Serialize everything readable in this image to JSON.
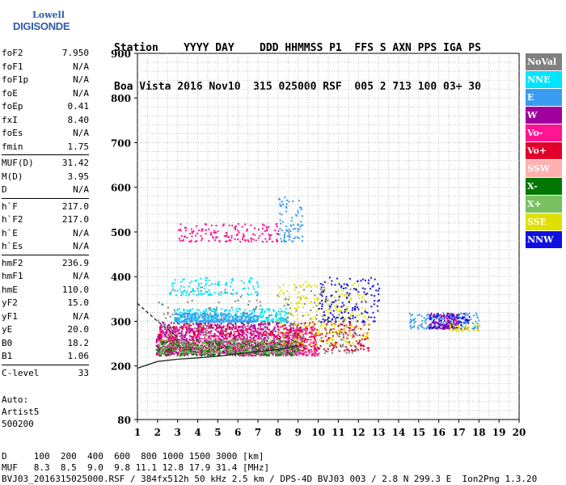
{
  "logo": {
    "top": "Lowell",
    "bottom": "DIGISONDE"
  },
  "header": {
    "line1": "Station    YYYY DAY    DDD HHMMSS P1  FFS S AXN PPS IGA PS",
    "line2": "Boa Vista 2016 Nov10  315 025000 RSF  005 2 713 100 03+ 30"
  },
  "params": [
    [
      {
        "k": "foF2",
        "v": "7.950"
      },
      {
        "k": "foF1",
        "v": "N/A"
      },
      {
        "k": "foF1p",
        "v": "N/A"
      },
      {
        "k": "foE",
        "v": "N/A"
      },
      {
        "k": "foEp",
        "v": "0.41"
      },
      {
        "k": "fxI",
        "v": "8.40"
      },
      {
        "k": "foEs",
        "v": "N/A"
      },
      {
        "k": "fmin",
        "v": "1.75"
      }
    ],
    [
      {
        "k": "MUF(D)",
        "v": "31.42"
      },
      {
        "k": "M(D)",
        "v": "3.95"
      },
      {
        "k": "D",
        "v": "N/A"
      }
    ],
    [
      {
        "k": "h`F",
        "v": "217.0"
      },
      {
        "k": "h`F2",
        "v": "217.0"
      },
      {
        "k": "h`E",
        "v": "N/A"
      },
      {
        "k": "h`Es",
        "v": "N/A"
      }
    ],
    [
      {
        "k": "hmF2",
        "v": "236.9"
      },
      {
        "k": "hmF1",
        "v": "N/A"
      },
      {
        "k": "hmE",
        "v": "110.0"
      },
      {
        "k": "yF2",
        "v": "15.0"
      },
      {
        "k": "yF1",
        "v": "N/A"
      },
      {
        "k": "yE",
        "v": "20.0"
      },
      {
        "k": "B0",
        "v": "18.2"
      },
      {
        "k": "B1",
        "v": "1.06"
      }
    ],
    [
      {
        "k": "C-level",
        "v": "33"
      }
    ]
  ],
  "auto": {
    "line1": "Auto:",
    "line2": "Artist5",
    "line3": "500200"
  },
  "footer": {
    "line1": "D     100  200  400  600  800 1000 1500 3000 [km]",
    "line2": "MUF   8.3  8.5  9.0  9.8 11.1 12.8 17.9 31.4 [MHz]",
    "line3": "BVJ03_2016315025000.RSF / 384fx512h 50 kHz 2.5 km / DPS-4D BVJ03 003 / 2.8 N 299.3 E  Ion2Png 1.3.20"
  },
  "legend": [
    {
      "label": "NoVal",
      "color": "#808080"
    },
    {
      "label": "NNE",
      "color": "#00e5ff"
    },
    {
      "label": "E",
      "color": "#3a9cf0"
    },
    {
      "label": "W",
      "color": "#a000a0"
    },
    {
      "label": "Vo-",
      "color": "#ff1493"
    },
    {
      "label": "Vo+",
      "color": "#e0002a"
    },
    {
      "label": "SSW",
      "color": "#ffb0b0"
    },
    {
      "label": "X-",
      "color": "#007800"
    },
    {
      "label": "X+",
      "color": "#78c060"
    },
    {
      "label": "SSE",
      "color": "#e0e000"
    },
    {
      "label": "NNW",
      "color": "#1010e0"
    }
  ],
  "chart_data": {
    "type": "scatter",
    "xlim": [
      1,
      20
    ],
    "ylim": [
      80,
      900
    ],
    "x_ticks": [
      "1",
      "2",
      "3",
      "4",
      "5",
      "6",
      "7",
      "8",
      "9",
      "10",
      "11",
      "12",
      "13",
      "14",
      "15",
      "16",
      "17",
      "18",
      "19",
      "20"
    ],
    "y_ticks": [
      "80",
      "200",
      "300",
      "400",
      "500",
      "600",
      "700",
      "800",
      "900"
    ],
    "grid": true,
    "legend_position": "right",
    "clusters": [
      {
        "series": "W",
        "x": [
          1.9,
          9.2
        ],
        "y": [
          230,
          300
        ],
        "n": 900
      },
      {
        "series": "Vo-",
        "x": [
          1.9,
          10.0
        ],
        "y": [
          225,
          290
        ],
        "n": 700
      },
      {
        "series": "Vo+",
        "x": [
          2.0,
          12.5
        ],
        "y": [
          235,
          300
        ],
        "n": 500
      },
      {
        "series": "X-",
        "x": [
          1.9,
          9.0
        ],
        "y": [
          225,
          260
        ],
        "n": 300
      },
      {
        "series": "X+",
        "x": [
          2.0,
          9.0
        ],
        "y": [
          230,
          260
        ],
        "n": 250
      },
      {
        "series": "NNE",
        "x": [
          2.8,
          8.5
        ],
        "y": [
          300,
          330
        ],
        "n": 350
      },
      {
        "series": "E",
        "x": [
          2.8,
          7.0
        ],
        "y": [
          300,
          320
        ],
        "n": 250
      },
      {
        "series": "NoVal",
        "x": [
          2.0,
          12.0
        ],
        "y": [
          230,
          380
        ],
        "n": 350
      },
      {
        "series": "SSE",
        "x": [
          8.0,
          12.5
        ],
        "y": [
          250,
          390
        ],
        "n": 250
      },
      {
        "series": "NNW",
        "x": [
          10.0,
          13.0
        ],
        "y": [
          300,
          400
        ],
        "n": 150
      },
      {
        "series": "Vo-",
        "x": [
          3.0,
          8.0
        ],
        "y": [
          480,
          520
        ],
        "n": 150
      },
      {
        "series": "E",
        "x": [
          8.0,
          9.2
        ],
        "y": [
          480,
          580
        ],
        "n": 80
      },
      {
        "series": "NNE",
        "x": [
          2.6,
          7.0
        ],
        "y": [
          360,
          400
        ],
        "n": 120
      },
      {
        "series": "E",
        "x": [
          14.5,
          18.0
        ],
        "y": [
          285,
          320
        ],
        "n": 150
      },
      {
        "series": "NNW",
        "x": [
          15.5,
          17.5
        ],
        "y": [
          285,
          320
        ],
        "n": 120
      },
      {
        "series": "W",
        "x": [
          15.5,
          17.0
        ],
        "y": [
          285,
          320
        ],
        "n": 80
      },
      {
        "series": "SSE",
        "x": [
          16.5,
          18.0
        ],
        "y": [
          280,
          295
        ],
        "n": 40
      }
    ],
    "curves": [
      {
        "style": "solid",
        "x": [
          1.0,
          2.0,
          3.0,
          4.0,
          5.0,
          6.0,
          7.0,
          8.0,
          9.0
        ],
        "y": [
          195,
          210,
          215,
          218,
          222,
          227,
          232,
          237,
          245
        ]
      },
      {
        "style": "dashed",
        "x": [
          1.0,
          2.0,
          3.0
        ],
        "y": [
          340,
          300,
          265
        ]
      }
    ]
  }
}
